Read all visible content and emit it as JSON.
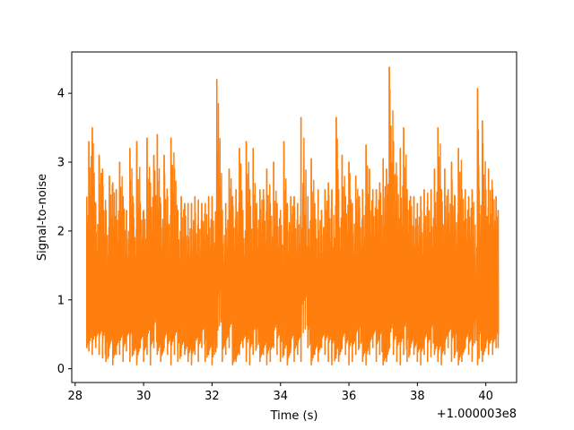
{
  "chart_data": {
    "type": "line",
    "xlabel": "Time (s)",
    "ylabel": "Signal-to-noise",
    "x_offset_label": "+1.000003e8",
    "xlim": [
      27.9,
      40.9
    ],
    "ylim": [
      -0.2,
      4.6
    ],
    "x_ticks": [
      28,
      30,
      32,
      34,
      36,
      38,
      40
    ],
    "y_ticks": [
      0,
      1,
      2,
      3,
      4
    ],
    "grid": false,
    "line_color": "#ff7f0e",
    "series": [
      {
        "x": [
          28.34,
          28.4,
          28.5,
          28.6,
          28.7,
          28.8,
          28.9,
          29.0,
          29.1,
          29.2,
          29.3,
          29.4,
          29.5,
          29.6,
          29.7,
          29.8,
          29.9,
          30.0,
          30.1,
          30.2,
          30.3,
          30.4,
          30.5,
          30.6,
          30.7,
          30.8,
          30.9,
          31.0,
          31.1,
          31.2,
          31.3,
          31.4,
          31.5,
          31.6,
          31.7,
          31.8,
          31.9,
          32.0,
          32.14,
          32.3,
          32.4,
          32.5,
          32.6,
          32.7,
          32.8,
          32.9,
          33.0,
          33.1,
          33.2,
          33.3,
          33.4,
          33.5,
          33.6,
          33.7,
          33.8,
          33.9,
          34.0,
          34.1,
          34.2,
          34.3,
          34.4,
          34.5,
          34.6,
          34.8,
          34.9,
          35.0,
          35.1,
          35.2,
          35.3,
          35.4,
          35.5,
          35.63,
          35.7,
          35.8,
          35.9,
          36.0,
          36.1,
          36.2,
          36.3,
          36.4,
          36.5,
          36.6,
          36.7,
          36.8,
          36.9,
          37.0,
          37.1,
          37.18,
          37.3,
          37.4,
          37.5,
          37.6,
          37.7,
          37.8,
          37.9,
          38.0,
          38.1,
          38.2,
          38.3,
          38.4,
          38.5,
          38.6,
          38.7,
          38.8,
          38.9,
          39.0,
          39.1,
          39.2,
          39.3,
          39.4,
          39.5,
          39.6,
          39.76,
          39.8,
          39.9,
          40.0,
          40.08,
          40.2,
          40.3,
          40.36
        ],
        "y_max": [
          2.5,
          3.3,
          3.5,
          2.4,
          3.1,
          2.9,
          2.3,
          2.8,
          2.7,
          2.6,
          3.0,
          2.5,
          2.3,
          3.2,
          2.4,
          3.3,
          2.4,
          2.3,
          3.35,
          2.7,
          3.1,
          3.4,
          2.4,
          3.1,
          2.5,
          3.35,
          2.9,
          2.3,
          2.5,
          2.4,
          2.4,
          2.4,
          2.5,
          2.45,
          2.4,
          2.4,
          2.5,
          2.5,
          4.2,
          2.3,
          2.4,
          2.9,
          2.5,
          2.6,
          3.2,
          2.3,
          3.3,
          2.6,
          3.2,
          2.4,
          2.6,
          2.6,
          2.9,
          2.4,
          3.0,
          2.4,
          2.3,
          3.3,
          2.4,
          2.5,
          2.5,
          2.4,
          3.65,
          2.5,
          3.05,
          2.4,
          2.6,
          2.3,
          2.6,
          2.7,
          2.6,
          3.65,
          2.6,
          3.1,
          2.5,
          3.0,
          2.4,
          2.8,
          2.5,
          2.6,
          3.25,
          2.9,
          2.6,
          2.6,
          2.7,
          3.05,
          2.9,
          4.38,
          3.3,
          2.8,
          3.2,
          3.5,
          2.6,
          2.5,
          2.5,
          2.4,
          2.5,
          2.6,
          2.55,
          2.6,
          2.9,
          3.5,
          2.6,
          2.9,
          2.6,
          3.0,
          2.5,
          3.2,
          2.6,
          2.6,
          2.5,
          2.6,
          4.07,
          2.6,
          3.6,
          2.6,
          2.9,
          2.6,
          2.5,
          2.3
        ],
        "y_min": [
          0.3,
          0.25,
          0.2,
          0.3,
          0.2,
          0.15,
          0.1,
          0.3,
          0.05,
          0.2,
          0.2,
          0.1,
          0.25,
          0.1,
          0.2,
          0.05,
          0.3,
          0.1,
          0.2,
          0.05,
          0.3,
          0.2,
          0.1,
          0.3,
          0.2,
          0.05,
          0.2,
          0.1,
          0.3,
          0.2,
          0.1,
          0.05,
          0.2,
          0.1,
          0.3,
          0.1,
          0.2,
          0.05,
          0.3,
          0.1,
          0.2,
          0.3,
          0.05,
          0.1,
          0.2,
          0.3,
          0.1,
          0.05,
          0.2,
          0.3,
          0.1,
          0.2,
          0.05,
          0.1,
          0.3,
          0.2,
          0.1,
          0.2,
          0.05,
          0.3,
          0.1,
          0.2,
          0.1,
          0.3,
          0.05,
          0.2,
          0.1,
          0.3,
          0.2,
          0.1,
          0.05,
          0.2,
          0.1,
          0.3,
          0.2,
          0.05,
          0.1,
          0.2,
          0.3,
          0.1,
          0.05,
          0.2,
          0.3,
          0.1,
          0.2,
          0.05,
          0.1,
          0.3,
          0.2,
          0.1,
          0.05,
          0.2,
          0.1,
          0.3,
          0.2,
          0.1,
          0.05,
          0.2,
          0.1,
          0.3,
          0.2,
          0.1,
          0.05,
          0.2,
          0.3,
          0.1,
          0.2,
          0.05,
          0.1,
          0.3,
          0.2,
          0.1,
          0.05,
          0.2,
          0.1,
          0.3,
          0.2,
          0.2,
          0.3,
          0.3
        ]
      }
    ]
  }
}
